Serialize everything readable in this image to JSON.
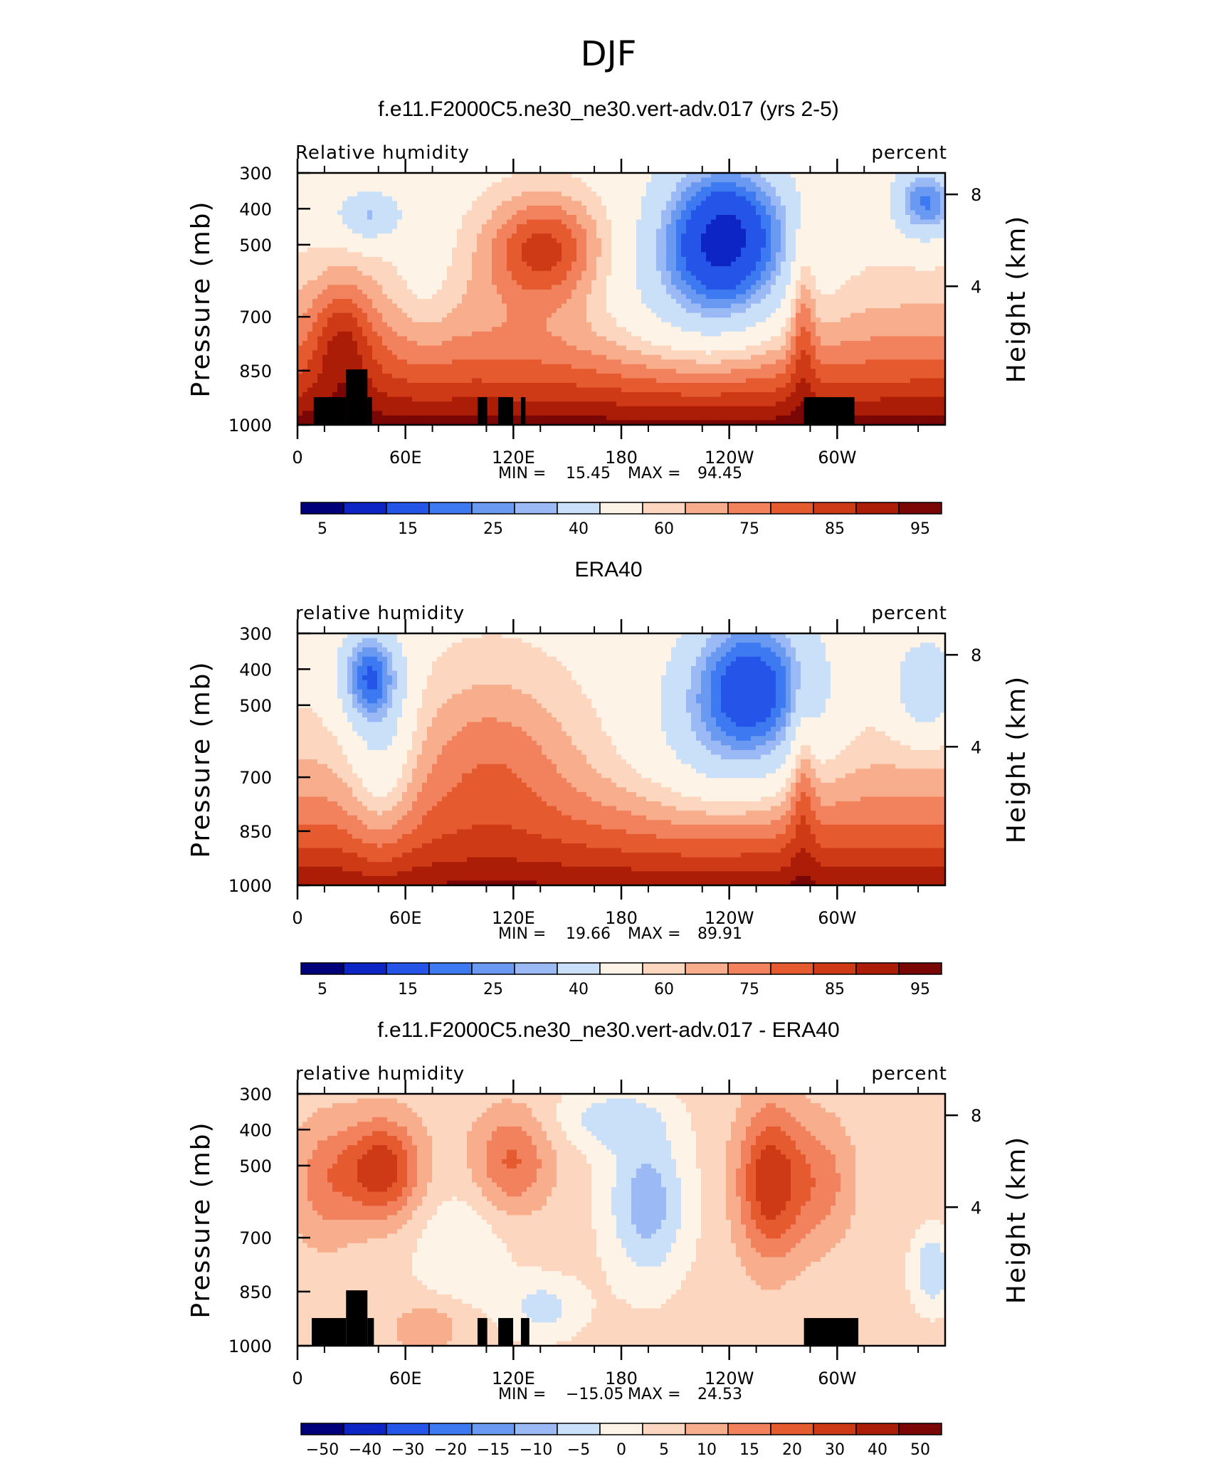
{
  "page_title": "DJF",
  "colors": {
    "relative_humidity_levels": [
      "#00007a",
      "#0d25c4",
      "#2455e8",
      "#3d79f0",
      "#6a99f2",
      "#9bbaf5",
      "#cadff8",
      "#fdf3e7",
      "#fcd6bf",
      "#f8ae8c",
      "#f1825d",
      "#e65a30",
      "#cf3a16",
      "#ac1d07",
      "#7a0605"
    ],
    "difference_levels": [
      "#00007a",
      "#0d25c4",
      "#2455e8",
      "#3d79f0",
      "#6a99f2",
      "#9bbaf5",
      "#cadff8",
      "#fdf3e7",
      "#fcd6bf",
      "#f8ae8c",
      "#f1825d",
      "#e65a30",
      "#cf3a16",
      "#ac1d07",
      "#7a0605"
    ],
    "missing": "#000000"
  },
  "chart_data": [
    {
      "type": "heatmap",
      "title": "f.e11.F2000C5.ne30_ne30.vert-adv.017 (yrs 2-5)",
      "left_label": "Relative humidity",
      "right_label": "percent",
      "ylabel": "Pressure (mb)",
      "y2label": "Height (km)",
      "x_ticks": [
        "0",
        "60E",
        "120E",
        "180",
        "120W",
        "60W"
      ],
      "y_ticks": [
        "300",
        "400",
        "500",
        "700",
        "850",
        "1000"
      ],
      "y2_ticks": [
        "8",
        "4"
      ],
      "min_label": "MIN =",
      "min": "15.45",
      "max_label": "MAX =",
      "max": "94.45",
      "levels": [
        "5",
        "15",
        "25",
        "40",
        "60",
        "75",
        "85",
        "95"
      ],
      "has_missing_terrain": true
    },
    {
      "type": "heatmap",
      "title": "ERA40",
      "left_label": "relative humidity",
      "right_label": "percent",
      "ylabel": "Pressure (mb)",
      "y2label": "Height (km)",
      "x_ticks": [
        "0",
        "60E",
        "120E",
        "180",
        "120W",
        "60W"
      ],
      "y_ticks": [
        "300",
        "400",
        "500",
        "700",
        "850",
        "1000"
      ],
      "y2_ticks": [
        "8",
        "4"
      ],
      "min_label": "MIN =",
      "min": "19.66",
      "max_label": "MAX =",
      "max": "89.91",
      "levels": [
        "5",
        "15",
        "25",
        "40",
        "60",
        "75",
        "85",
        "95"
      ],
      "has_missing_terrain": false
    },
    {
      "type": "heatmap",
      "title": "f.e11.F2000C5.ne30_ne30.vert-adv.017 - ERA40",
      "left_label": "relative humidity",
      "right_label": "percent",
      "ylabel": "Pressure (mb)",
      "y2label": "Height (km)",
      "x_ticks": [
        "0",
        "60E",
        "120E",
        "180",
        "120W",
        "60W"
      ],
      "y_ticks": [
        "300",
        "400",
        "500",
        "700",
        "850",
        "1000"
      ],
      "y2_ticks": [
        "8",
        "4"
      ],
      "min_label": "MIN =",
      "min": "−15.05",
      "max_label": "MAX =",
      "max": "24.53",
      "levels": [
        "−50",
        "−40",
        "−30",
        "−20",
        "−15",
        "−10",
        "−5",
        "0",
        "5",
        "10",
        "15",
        "20",
        "30",
        "40",
        "50"
      ],
      "has_missing_terrain": true
    }
  ]
}
